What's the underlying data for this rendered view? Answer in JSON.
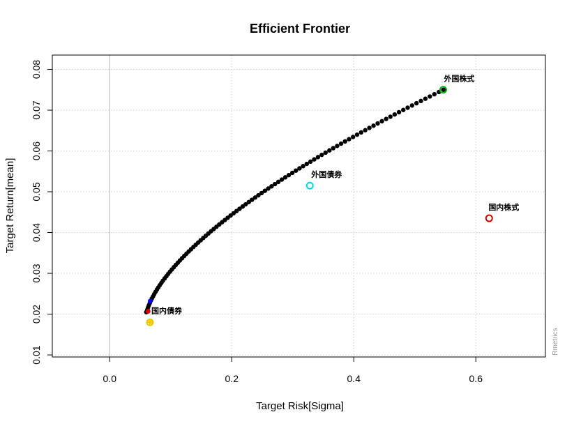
{
  "chart_data": {
    "type": "scatter",
    "title": "Efficient Frontier",
    "xlabel": "Target Risk[Sigma]",
    "ylabel": "Target Return[mean]",
    "xlim": [
      -0.094,
      0.714
    ],
    "ylim": [
      0.0095,
      0.0835
    ],
    "x_ticks": [
      0.0,
      0.2,
      0.4,
      0.6
    ],
    "x_tick_labels": [
      "0.0",
      "0.2",
      "0.4",
      "0.6"
    ],
    "y_ticks": [
      0.01,
      0.02,
      0.03,
      0.04,
      0.05,
      0.06,
      0.07,
      0.08
    ],
    "y_tick_labels": [
      "0.01",
      "0.02",
      "0.03",
      "0.04",
      "0.05",
      "0.06",
      "0.07",
      "0.08"
    ],
    "grid": true,
    "vertical_reference_line_x": 0.0,
    "frontier": {
      "x_range": [
        0.06,
        0.547
      ],
      "y_range": [
        0.0205,
        0.075
      ],
      "points": 100,
      "color": "#000000"
    },
    "special_points": [
      {
        "name": "minimum-variance",
        "x": 0.063,
        "y": 0.0207,
        "color": "#dd0000"
      },
      {
        "name": "tangency",
        "x": 0.0665,
        "y": 0.0232,
        "color": "#0000ff"
      },
      {
        "name": "equal-weights",
        "x": 0.0665,
        "y": 0.0181,
        "color": "#ffd700"
      }
    ],
    "assets": [
      {
        "label": "国内債券",
        "x": 0.066,
        "y": 0.018,
        "color": "#e8c800",
        "text_dx": 2,
        "text_dy": -13
      },
      {
        "label": "外国債券",
        "x": 0.328,
        "y": 0.0515,
        "color": "#00d8d8",
        "text_dx": 2,
        "text_dy": -12
      },
      {
        "label": "国内株式",
        "x": 0.6218,
        "y": 0.0435,
        "color": "#cc0000",
        "text_dx": -1,
        "text_dy": -12
      },
      {
        "label": "外国株式",
        "x": 0.5465,
        "y": 0.075,
        "color": "#00b400",
        "text_dx": 1,
        "text_dy": -12
      }
    ],
    "watermark": "Rmetrics"
  }
}
